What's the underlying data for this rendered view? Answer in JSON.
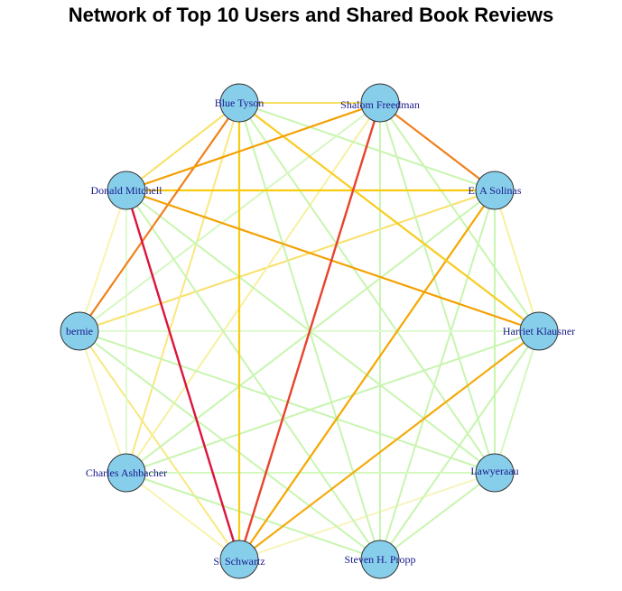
{
  "title": "Network of Top 10 Users and Shared Book Reviews",
  "colors": {
    "node_fill": "#87ceeb",
    "node_stroke": "#333333",
    "label": "#1a1a8c"
  },
  "nodes": [
    {
      "id": "blue",
      "label": "Blue Tyson"
    },
    {
      "id": "shalom",
      "label": "Shalom Freedman"
    },
    {
      "id": "solinas",
      "label": "E. A Solinas"
    },
    {
      "id": "klausner",
      "label": "Harriet Klausner"
    },
    {
      "id": "lawyer",
      "label": "Lawyeraau"
    },
    {
      "id": "propp",
      "label": "Steven H. Propp"
    },
    {
      "id": "schwartz",
      "label": "S. Schwartz"
    },
    {
      "id": "ashbacher",
      "label": "Charles Ashbacher"
    },
    {
      "id": "bernie",
      "label": "bernie"
    },
    {
      "id": "mitchell",
      "label": "Donald Mitchell"
    }
  ],
  "edges": [
    {
      "source": "mitchell",
      "target": "schwartz",
      "color": "#dc143c",
      "weight": 5
    },
    {
      "source": "shalom",
      "target": "schwartz",
      "color": "#e8432c",
      "weight": 5
    },
    {
      "source": "blue",
      "target": "bernie",
      "color": "#f0801a",
      "weight": 4
    },
    {
      "source": "shalom",
      "target": "solinas",
      "color": "#f0801a",
      "weight": 4
    },
    {
      "source": "shalom",
      "target": "mitchell",
      "color": "#f4a000",
      "weight": 4
    },
    {
      "source": "mitchell",
      "target": "klausner",
      "color": "#f4a000",
      "weight": 4
    },
    {
      "source": "solinas",
      "target": "schwartz",
      "color": "#f4a800",
      "weight": 3
    },
    {
      "source": "klausner",
      "target": "schwartz",
      "color": "#f4ac10",
      "weight": 3
    },
    {
      "source": "mitchell",
      "target": "solinas",
      "color": "#f8cc10",
      "weight": 3
    },
    {
      "source": "blue",
      "target": "schwartz",
      "color": "#f8cc10",
      "weight": 3
    },
    {
      "source": "blue",
      "target": "klausner",
      "color": "#f8cc20",
      "weight": 3
    },
    {
      "source": "blue",
      "target": "shalom",
      "color": "#f8e060",
      "weight": 2
    },
    {
      "source": "blue",
      "target": "mitchell",
      "color": "#f8e060",
      "weight": 2
    },
    {
      "source": "solinas",
      "target": "bernie",
      "color": "#f8e068",
      "weight": 2
    },
    {
      "source": "blue",
      "target": "ashbacher",
      "color": "#f8e880",
      "weight": 2
    },
    {
      "source": "bernie",
      "target": "schwartz",
      "color": "#f8e880",
      "weight": 2
    },
    {
      "source": "solinas",
      "target": "klausner",
      "color": "#f8f0a0",
      "weight": 2
    },
    {
      "source": "shalom",
      "target": "ashbacher",
      "color": "#f8f0a0",
      "weight": 2
    },
    {
      "source": "mitchell",
      "target": "bernie",
      "color": "#f8f4b0",
      "weight": 2
    },
    {
      "source": "bernie",
      "target": "ashbacher",
      "color": "#f8f4b0",
      "weight": 2
    },
    {
      "source": "ashbacher",
      "target": "schwartz",
      "color": "#f8f4b0",
      "weight": 2
    },
    {
      "source": "lawyer",
      "target": "schwartz",
      "color": "#f8f4c0",
      "weight": 2
    },
    {
      "source": "blue",
      "target": "solinas",
      "color": "#c8f5b0",
      "weight": 2
    },
    {
      "source": "blue",
      "target": "lawyer",
      "color": "#c8f5b0",
      "weight": 2
    },
    {
      "source": "blue",
      "target": "propp",
      "color": "#c8f5b0",
      "weight": 2
    },
    {
      "source": "shalom",
      "target": "klausner",
      "color": "#c8f5b0",
      "weight": 2
    },
    {
      "source": "shalom",
      "target": "lawyer",
      "color": "#c8f5b0",
      "weight": 2
    },
    {
      "source": "shalom",
      "target": "propp",
      "color": "#c8f5b0",
      "weight": 2
    },
    {
      "source": "shalom",
      "target": "bernie",
      "color": "#d4f8c0",
      "weight": 2
    },
    {
      "source": "solinas",
      "target": "lawyer",
      "color": "#c8f5b0",
      "weight": 2
    },
    {
      "source": "solinas",
      "target": "propp",
      "color": "#c8f5b0",
      "weight": 2
    },
    {
      "source": "solinas",
      "target": "ashbacher",
      "color": "#c8f5b0",
      "weight": 2
    },
    {
      "source": "klausner",
      "target": "lawyer",
      "color": "#d4f8c0",
      "weight": 2
    },
    {
      "source": "klausner",
      "target": "propp",
      "color": "#c8f5b0",
      "weight": 2
    },
    {
      "source": "klausner",
      "target": "ashbacher",
      "color": "#c8f5b0",
      "weight": 2
    },
    {
      "source": "klausner",
      "target": "bernie",
      "color": "#e0fad0",
      "weight": 2
    },
    {
      "source": "lawyer",
      "target": "propp",
      "color": "#c8f5b0",
      "weight": 2
    },
    {
      "source": "lawyer",
      "target": "ashbacher",
      "color": "#d4f8c0",
      "weight": 2
    },
    {
      "source": "lawyer",
      "target": "bernie",
      "color": "#c8f5b0",
      "weight": 2
    },
    {
      "source": "lawyer",
      "target": "mitchell",
      "color": "#c8f5b0",
      "weight": 2
    },
    {
      "source": "propp",
      "target": "ashbacher",
      "color": "#c8f5b0",
      "weight": 2
    },
    {
      "source": "propp",
      "target": "bernie",
      "color": "#c8f5b0",
      "weight": 2
    },
    {
      "source": "propp",
      "target": "mitchell",
      "color": "#c8f5b0",
      "weight": 2
    },
    {
      "source": "ashbacher",
      "target": "mitchell",
      "color": "#e0fad0",
      "weight": 2
    }
  ]
}
